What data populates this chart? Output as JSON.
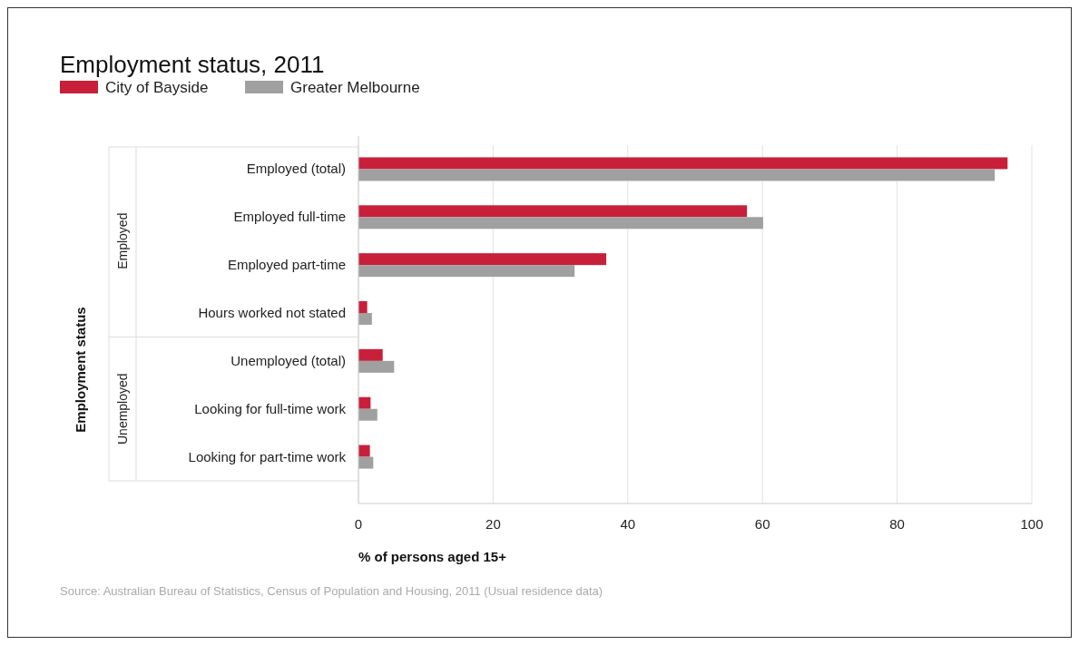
{
  "chart_data": {
    "type": "bar",
    "orientation": "horizontal",
    "title": "Employment status, 2011",
    "xlabel": "% of persons aged 15+",
    "categories": [
      "Employed (total)",
      "Employed full-time",
      "Employed part-time",
      "Hours worked not stated",
      "Unemployed (total)",
      "Looking for full-time work",
      "Looking for part-time work"
    ],
    "series": [
      {
        "name": "City of Bayside",
        "color": "#c8203a",
        "values": [
          96.4,
          57.7,
          36.8,
          1.3,
          3.6,
          1.8,
          1.7
        ]
      },
      {
        "name": "Greater Melbourne",
        "color": "#a0a0a0",
        "values": [
          94.5,
          60.1,
          32.1,
          2.0,
          5.3,
          2.8,
          2.2
        ]
      }
    ],
    "xlim": [
      0,
      100
    ],
    "xticks": [
      0,
      20,
      40,
      60,
      80,
      100
    ],
    "grid": "x",
    "legend": "top left",
    "annotations": [
      "Employed",
      "Unemployed",
      "Employment status",
      "Source: Australian Bureau of Statistics, Census of Population and Housing, 2011 (Usual residence data)"
    ]
  }
}
